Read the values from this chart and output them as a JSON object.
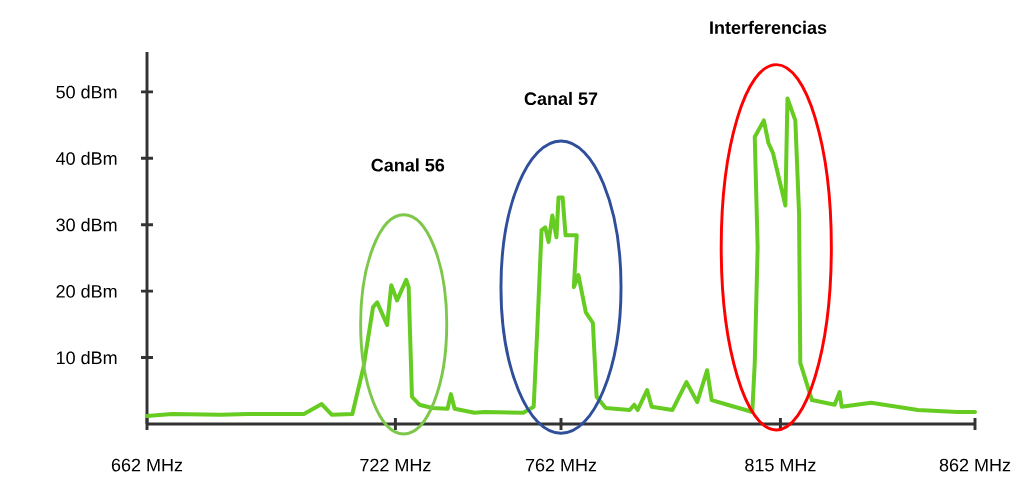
{
  "chart_data": {
    "type": "line",
    "x": [
      662.0,
      668.0,
      679.8,
      686.5,
      699.9,
      704.2,
      706.6,
      711.6,
      714.3,
      716.6,
      717.6,
      720.0,
      721.0,
      722.4,
      724.6,
      725.2,
      726.0,
      727.8,
      730.9,
      734.6,
      735.4,
      736.3,
      741.1,
      743.5,
      752.9,
      755.4,
      756.3,
      757.3,
      758.2,
      759.0,
      759.9,
      760.9,
      761.4,
      762.4,
      763.1,
      765.8,
      765.1,
      766.2,
      768.0,
      769.7,
      770.6,
      772.8,
      778.6,
      779.7,
      780.5,
      782.8,
      783.9,
      788.9,
      792.3,
      794.9,
      797.3,
      798.4,
      802.2,
      806.6,
      808.2,
      808.8,
      809.5,
      808.8,
      811.0,
      812.1,
      813.2,
      816.2,
      816.7,
      818.6,
      819.5,
      819.8,
      822.6,
      828.1,
      829.3,
      829.8,
      836.9,
      848.2,
      857.7,
      862.0
    ],
    "series": [
      {
        "color": "#66cc22",
        "values": [
          1.2,
          1.5,
          1.4,
          1.5,
          1.5,
          3.0,
          1.4,
          1.5,
          8.6,
          17.6,
          18.3,
          14.9,
          20.9,
          18.6,
          21.7,
          20.6,
          4.1,
          2.9,
          2.4,
          2.3,
          4.5,
          2.3,
          1.7,
          1.8,
          1.7,
          2.6,
          14.6,
          29.2,
          29.6,
          27.4,
          31.4,
          28.1,
          34.1,
          34.1,
          28.4,
          28.4,
          20.6,
          22.4,
          16.8,
          15.2,
          4.1,
          2.4,
          2.1,
          2.9,
          2.1,
          5.1,
          2.6,
          2.1,
          6.3,
          3.3,
          8.1,
          3.6,
          2.9,
          2.1,
          1.8,
          9.2,
          26.6,
          43.2,
          45.7,
          42.3,
          40.8,
          32.9,
          49.0,
          45.7,
          31.7,
          9.2,
          3.6,
          2.9,
          4.8,
          2.6,
          3.2,
          2.1,
          1.8,
          1.8
        ]
      }
    ],
    "xlim": [
      662,
      862
    ],
    "xticks": [
      {
        "value": 662,
        "label": "662 MHz"
      },
      {
        "value": 722,
        "label": "722 MHz"
      },
      {
        "value": 762,
        "label": "762 MHz"
      },
      {
        "value": 815,
        "label": "815 MHz"
      },
      {
        "value": 862,
        "label": "862 MHz"
      }
    ],
    "ylim": [
      0,
      56
    ],
    "yticks": [
      {
        "value": 10,
        "label": "10 dBm"
      },
      {
        "value": 20,
        "label": "20 dBm"
      },
      {
        "value": 30,
        "label": "30 dBm"
      },
      {
        "value": 40,
        "label": "40 dBm"
      },
      {
        "value": 50,
        "label": "50 dBm"
      }
    ],
    "annotations": [
      "Canal 56",
      "Canal 57",
      "Interferencias"
    ],
    "grid": false
  }
}
